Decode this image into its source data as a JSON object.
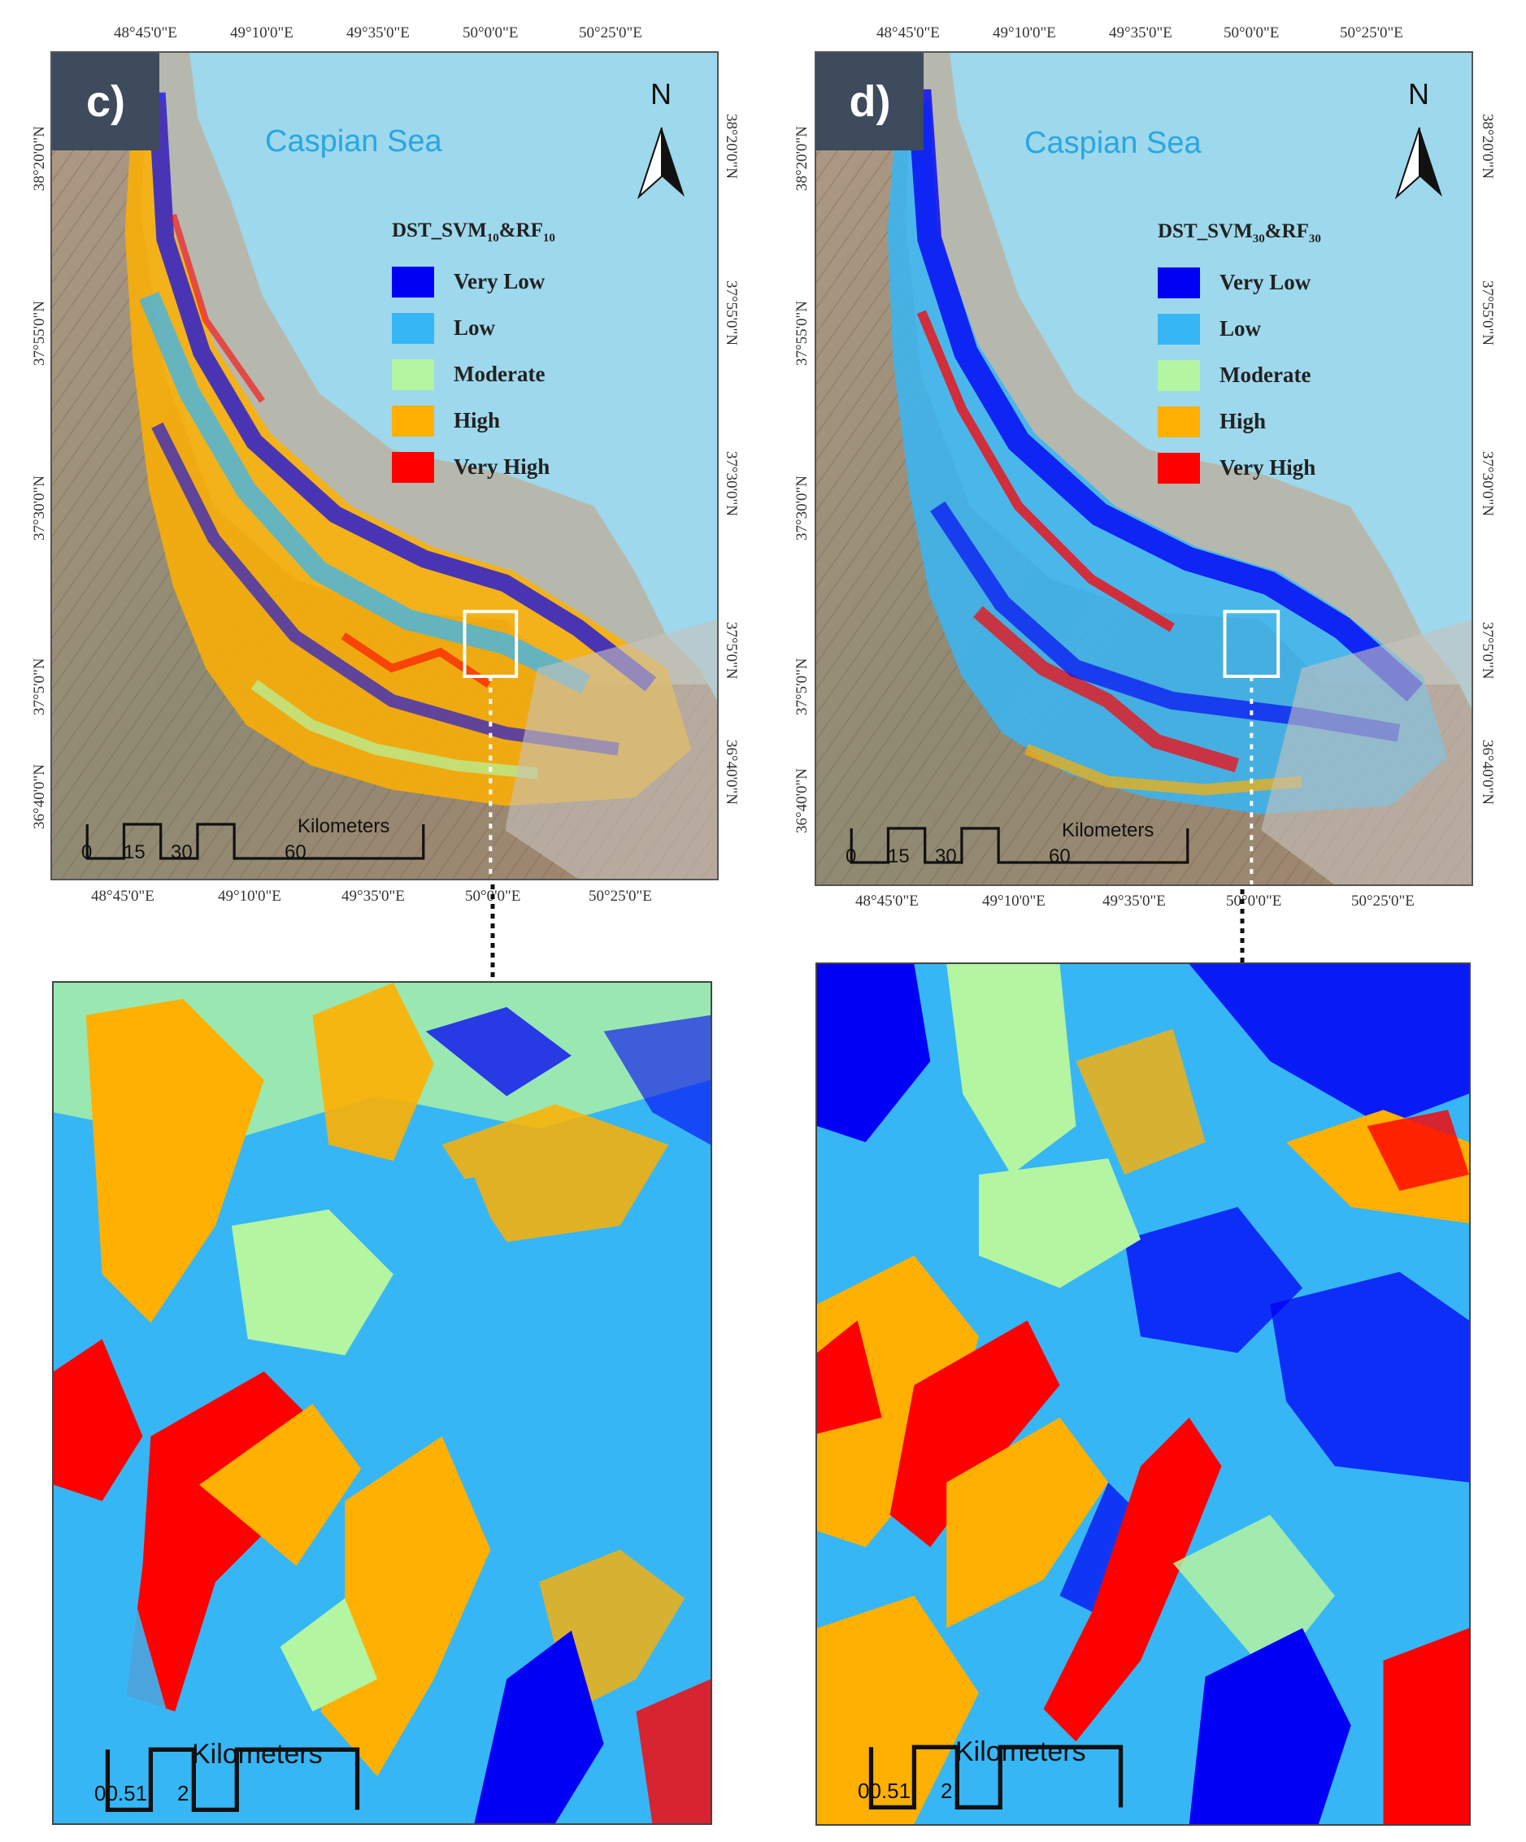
{
  "panels": [
    {
      "label": "c)",
      "sea_label": "Caspian Sea",
      "north": "N",
      "legend": {
        "title_main": "DST_SVM",
        "title_sub1": "10",
        "title_mid": "&RF",
        "title_sub2": "10",
        "classes": [
          {
            "label": "Very Low",
            "color": "#0000f5"
          },
          {
            "label": "Low",
            "color": "#37b6f5"
          },
          {
            "label": "Moderate",
            "color": "#b3f5a0"
          },
          {
            "label": "High",
            "color": "#ffb000"
          },
          {
            "label": "Very High",
            "color": "#ff0000"
          }
        ]
      },
      "lon_ticks": [
        "48°45'0\"E",
        "49°10'0\"E",
        "49°35'0\"E",
        "50°0'0\"E",
        "50°25'0\"E"
      ],
      "lat_ticks": [
        "38°20'0\"N",
        "37°55'0\"N",
        "37°30'0\"N",
        "37°5'0\"N",
        "36°40'0\"N"
      ],
      "scale": {
        "numbers": [
          "0",
          "15",
          "30",
          "60"
        ],
        "unit": "Kilometers"
      },
      "inset_scale": {
        "numbers": [
          "00.51",
          "2"
        ],
        "unit": "Kilometers"
      }
    },
    {
      "label": "d)",
      "sea_label": "Caspian Sea",
      "north": "N",
      "legend": {
        "title_main": "DST_SVM",
        "title_sub1": "30",
        "title_mid": "&RF",
        "title_sub2": "30",
        "classes": [
          {
            "label": "Very Low",
            "color": "#0000f5"
          },
          {
            "label": "Low",
            "color": "#37b6f5"
          },
          {
            "label": "Moderate",
            "color": "#b3f5a0"
          },
          {
            "label": "High",
            "color": "#ffb000"
          },
          {
            "label": "Very High",
            "color": "#ff0000"
          }
        ]
      },
      "lon_ticks": [
        "48°45'0\"E",
        "49°10'0\"E",
        "49°35'0\"E",
        "50°0'0\"E",
        "50°25'0\"E"
      ],
      "lat_ticks": [
        "38°20'0\"N",
        "37°55'0\"N",
        "37°30'0\"N",
        "37°5'0\"N",
        "36°40'0\"N"
      ],
      "scale": {
        "numbers": [
          "0",
          "15",
          "30",
          "60"
        ],
        "unit": "Kilometers"
      },
      "inset_scale": {
        "numbers": [
          "00.51",
          "2"
        ],
        "unit": "Kilometers"
      }
    }
  ],
  "colors": {
    "sea": "#9ed8ec",
    "coastal_plain": "#b7b8ad",
    "terrain": "#a38670"
  }
}
